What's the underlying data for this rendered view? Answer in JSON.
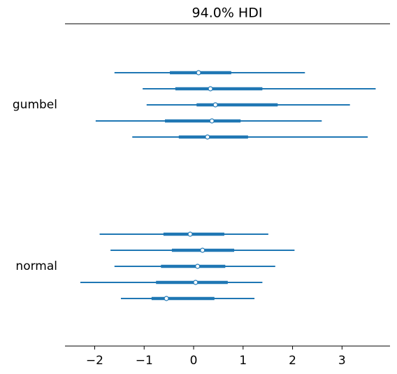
{
  "chart_data": {
    "type": "forest",
    "title": "94.0% HDI",
    "color": "#1f77b4",
    "xlim": [
      -2.6,
      3.97
    ],
    "xticks": [
      {
        "value": -2,
        "label": "−2"
      },
      {
        "value": -1,
        "label": "−1"
      },
      0,
      1,
      2,
      3
    ],
    "groups": [
      {
        "name": "gumbel",
        "chains": [
          {
            "hdi_low": -1.6,
            "hdi_high": 2.25,
            "q_low": -0.48,
            "q_high": 0.76,
            "median": 0.1
          },
          {
            "hdi_low": -1.03,
            "hdi_high": 3.68,
            "q_low": -0.37,
            "q_high": 1.39,
            "median": 0.34
          },
          {
            "hdi_low": -0.95,
            "hdi_high": 3.16,
            "q_low": 0.06,
            "q_high": 1.7,
            "median": 0.44
          },
          {
            "hdi_low": -1.98,
            "hdi_high": 2.59,
            "q_low": -0.58,
            "q_high": 0.95,
            "median": 0.37
          },
          {
            "hdi_low": -1.24,
            "hdi_high": 3.52,
            "q_low": -0.3,
            "q_high": 1.1,
            "median": 0.28
          }
        ]
      },
      {
        "name": "normal",
        "chains": [
          {
            "hdi_low": -1.9,
            "hdi_high": 1.51,
            "q_low": -0.61,
            "q_high": 0.62,
            "median": -0.07
          },
          {
            "hdi_low": -1.68,
            "hdi_high": 2.04,
            "q_low": -0.44,
            "q_high": 0.82,
            "median": 0.18
          },
          {
            "hdi_low": -1.6,
            "hdi_high": 1.65,
            "q_low": -0.66,
            "q_high": 0.64,
            "median": 0.08
          },
          {
            "hdi_low": -2.29,
            "hdi_high": 1.39,
            "q_low": -0.76,
            "q_high": 0.69,
            "median": 0.04
          },
          {
            "hdi_low": -1.47,
            "hdi_high": 1.23,
            "q_low": -0.85,
            "q_high": 0.42,
            "median": -0.55
          }
        ]
      }
    ]
  }
}
